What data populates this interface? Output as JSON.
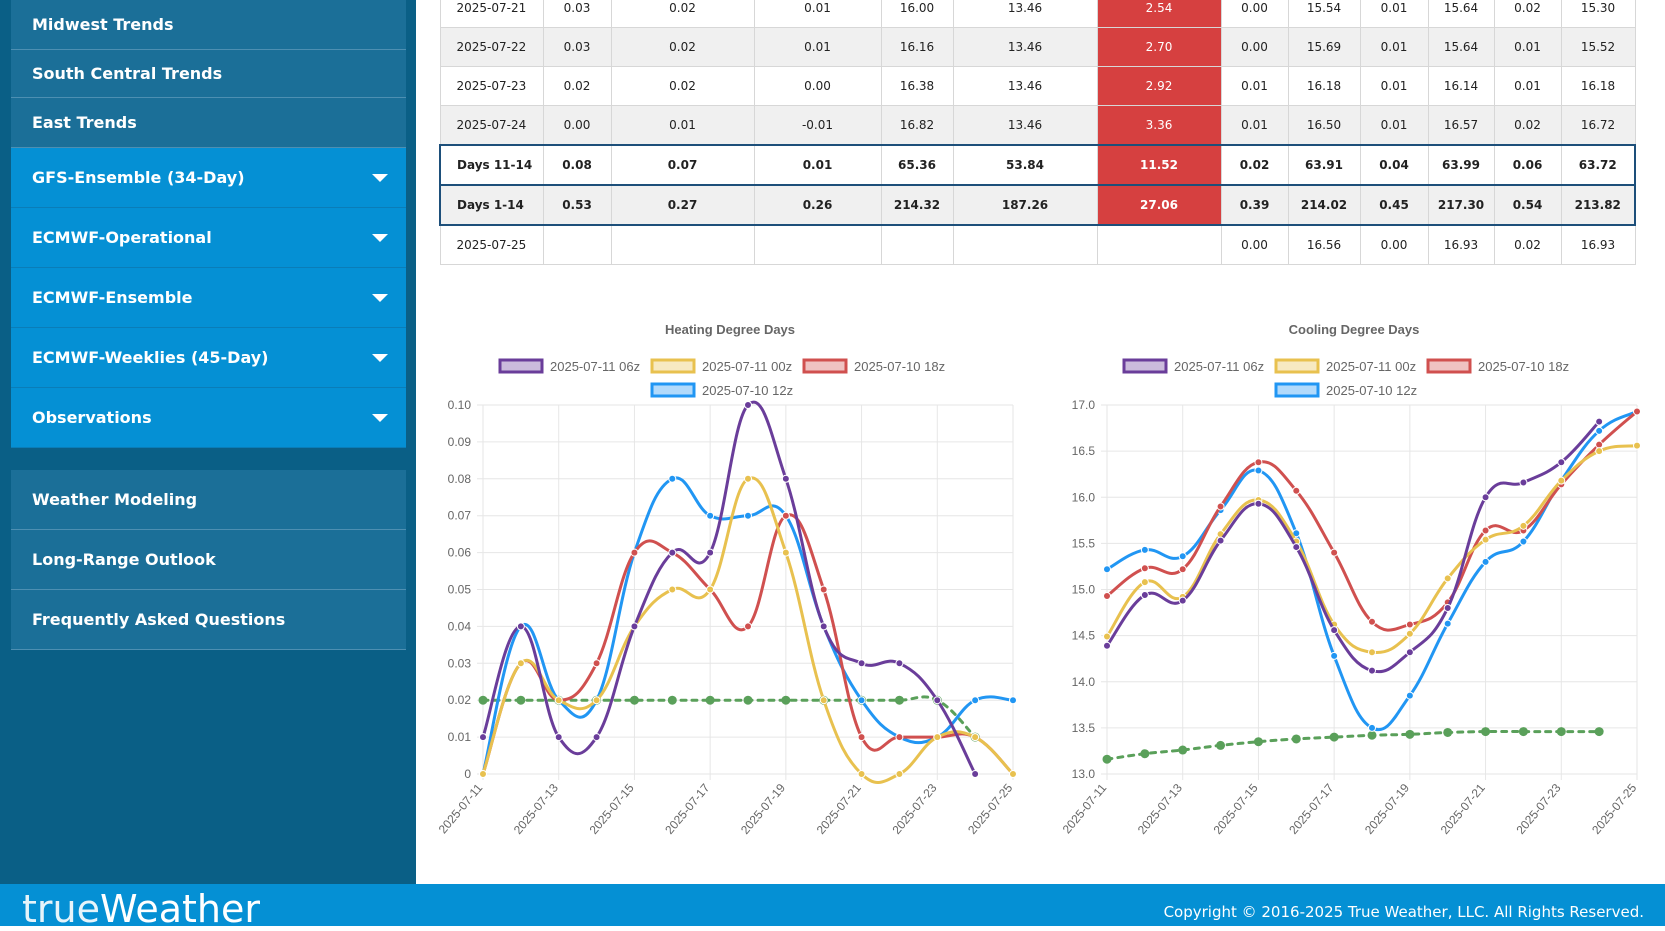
{
  "sidebar": {
    "top_items": [
      "Midwest Trends",
      "South Central Trends",
      "East Trends"
    ],
    "model_items": [
      "GFS-Ensemble (34-Day)",
      "ECMWF-Operational",
      "ECMWF-Ensemble",
      "ECMWF-Weeklies (45-Day)",
      "Observations"
    ],
    "bottom_items": [
      "Weather Modeling",
      "Long-Range Outlook",
      "Frequently Asked Questions"
    ]
  },
  "table": {
    "rows": [
      {
        "type": "odd",
        "cells": [
          "2025-07-21",
          "0.03",
          "0.02",
          "0.01",
          "16.00",
          "13.46",
          "2.54",
          "0.00",
          "15.54",
          "0.01",
          "15.64",
          "0.02",
          "15.30"
        ]
      },
      {
        "type": "even",
        "cells": [
          "2025-07-22",
          "0.03",
          "0.02",
          "0.01",
          "16.16",
          "13.46",
          "2.70",
          "0.00",
          "15.69",
          "0.01",
          "15.64",
          "0.01",
          "15.52"
        ]
      },
      {
        "type": "odd",
        "cells": [
          "2025-07-23",
          "0.02",
          "0.02",
          "0.00",
          "16.38",
          "13.46",
          "2.92",
          "0.01",
          "16.18",
          "0.01",
          "16.14",
          "0.01",
          "16.18"
        ]
      },
      {
        "type": "even",
        "cells": [
          "2025-07-24",
          "0.00",
          "0.01",
          "-0.01",
          "16.82",
          "13.46",
          "3.36",
          "0.01",
          "16.50",
          "0.01",
          "16.57",
          "0.02",
          "16.72"
        ]
      },
      {
        "type": "sum",
        "cells": [
          "Days 11-14",
          "0.08",
          "0.07",
          "0.01",
          "65.36",
          "53.84",
          "11.52",
          "0.02",
          "63.91",
          "0.04",
          "63.99",
          "0.06",
          "63.72"
        ]
      },
      {
        "type": "sum2",
        "cells": [
          "Days 1-14",
          "0.53",
          "0.27",
          "0.26",
          "214.32",
          "187.26",
          "27.06",
          "0.39",
          "214.02",
          "0.45",
          "217.30",
          "0.54",
          "213.82"
        ]
      },
      {
        "type": "odd",
        "cells": [
          "2025-07-25",
          "",
          "",
          "",
          "",
          "",
          "",
          "0.00",
          "16.56",
          "0.00",
          "16.93",
          "0.02",
          "16.93"
        ]
      }
    ]
  },
  "chart_data": [
    {
      "type": "line",
      "title": "Heating Degree Days",
      "x": [
        "2025-07-11",
        "2025-07-12",
        "2025-07-13",
        "2025-07-14",
        "2025-07-15",
        "2025-07-16",
        "2025-07-17",
        "2025-07-18",
        "2025-07-19",
        "2025-07-20",
        "2025-07-21",
        "2025-07-22",
        "2025-07-23",
        "2025-07-24",
        "2025-07-25"
      ],
      "xticks": [
        "2025-07-11",
        "2025-07-13",
        "2025-07-15",
        "2025-07-17",
        "2025-07-19",
        "2025-07-21",
        "2025-07-23",
        "2025-07-25"
      ],
      "ylim": [
        0,
        0.1
      ],
      "yticks": [
        "0",
        "0.01",
        "0.02",
        "0.03",
        "0.04",
        "0.05",
        "0.06",
        "0.07",
        "0.08",
        "0.09",
        "0.10"
      ],
      "series": [
        {
          "name": "2025-07-11 06z",
          "color": "#6a3d9a",
          "values": [
            0.01,
            0.04,
            0.01,
            0.01,
            0.04,
            0.06,
            0.06,
            0.1,
            0.08,
            0.04,
            0.03,
            0.03,
            0.02,
            0.0,
            null
          ]
        },
        {
          "name": "2025-07-11 00z",
          "color": "#e8c14f",
          "values": [
            0.0,
            0.03,
            0.02,
            0.02,
            0.04,
            0.05,
            0.05,
            0.08,
            0.06,
            0.02,
            0.0,
            0.0,
            0.01,
            0.01,
            0.0
          ]
        },
        {
          "name": "2025-07-10 18z",
          "color": "#d0504f",
          "values": [
            0.0,
            0.03,
            0.02,
            0.03,
            0.06,
            0.06,
            0.05,
            0.04,
            0.07,
            0.05,
            0.01,
            0.01,
            0.01,
            0.01,
            0.0
          ]
        },
        {
          "name": "2025-07-10 12z",
          "color": "#2196f3",
          "values": [
            0.0,
            0.04,
            0.02,
            0.02,
            0.06,
            0.08,
            0.07,
            0.07,
            0.07,
            0.04,
            0.02,
            0.01,
            0.01,
            0.02,
            0.02
          ]
        },
        {
          "name": "",
          "color": "#5aa05a",
          "dashed": true,
          "values": [
            0.02,
            0.02,
            0.02,
            0.02,
            0.02,
            0.02,
            0.02,
            0.02,
            0.02,
            0.02,
            0.02,
            0.02,
            0.02,
            0.01,
            null
          ]
        }
      ]
    },
    {
      "type": "line",
      "title": "Cooling Degree Days",
      "x": [
        "2025-07-11",
        "2025-07-12",
        "2025-07-13",
        "2025-07-14",
        "2025-07-15",
        "2025-07-16",
        "2025-07-17",
        "2025-07-18",
        "2025-07-19",
        "2025-07-20",
        "2025-07-21",
        "2025-07-22",
        "2025-07-23",
        "2025-07-24",
        "2025-07-25"
      ],
      "xticks": [
        "2025-07-11",
        "2025-07-13",
        "2025-07-15",
        "2025-07-17",
        "2025-07-19",
        "2025-07-21",
        "2025-07-23",
        "2025-07-25"
      ],
      "ylim": [
        13.0,
        17.0
      ],
      "yticks": [
        "13.0",
        "13.5",
        "14.0",
        "14.5",
        "15.0",
        "15.5",
        "16.0",
        "16.5",
        "17.0"
      ],
      "series": [
        {
          "name": "2025-07-11 06z",
          "color": "#6a3d9a",
          "values": [
            14.39,
            14.94,
            14.88,
            15.53,
            15.93,
            15.46,
            14.56,
            14.12,
            14.32,
            14.8,
            16.0,
            16.16,
            16.38,
            16.82,
            null
          ]
        },
        {
          "name": "2025-07-11 00z",
          "color": "#e8c14f",
          "values": [
            14.49,
            15.08,
            14.92,
            15.6,
            15.97,
            15.52,
            14.62,
            14.32,
            14.52,
            15.12,
            15.54,
            15.69,
            16.18,
            16.5,
            16.56
          ]
        },
        {
          "name": "2025-07-10 18z",
          "color": "#d0504f",
          "values": [
            14.93,
            15.23,
            15.22,
            15.9,
            16.38,
            16.07,
            15.4,
            14.65,
            14.62,
            14.86,
            15.64,
            15.64,
            16.14,
            16.57,
            16.93
          ]
        },
        {
          "name": "2025-07-10 12z",
          "color": "#2196f3",
          "values": [
            15.22,
            15.43,
            15.36,
            15.86,
            16.29,
            15.61,
            14.28,
            13.5,
            13.85,
            14.63,
            15.3,
            15.52,
            16.18,
            16.72,
            16.93
          ]
        },
        {
          "name": "",
          "color": "#5aa05a",
          "dashed": true,
          "values": [
            13.16,
            13.22,
            13.26,
            13.31,
            13.35,
            13.38,
            13.4,
            13.42,
            13.43,
            13.45,
            13.46,
            13.46,
            13.46,
            13.46,
            null
          ]
        }
      ]
    }
  ],
  "footer": {
    "logo_thin": "true",
    "logo_bold": "Weather",
    "copyright": "Copyright © 2016-2025 True Weather, LLC. All Rights Reserved."
  }
}
